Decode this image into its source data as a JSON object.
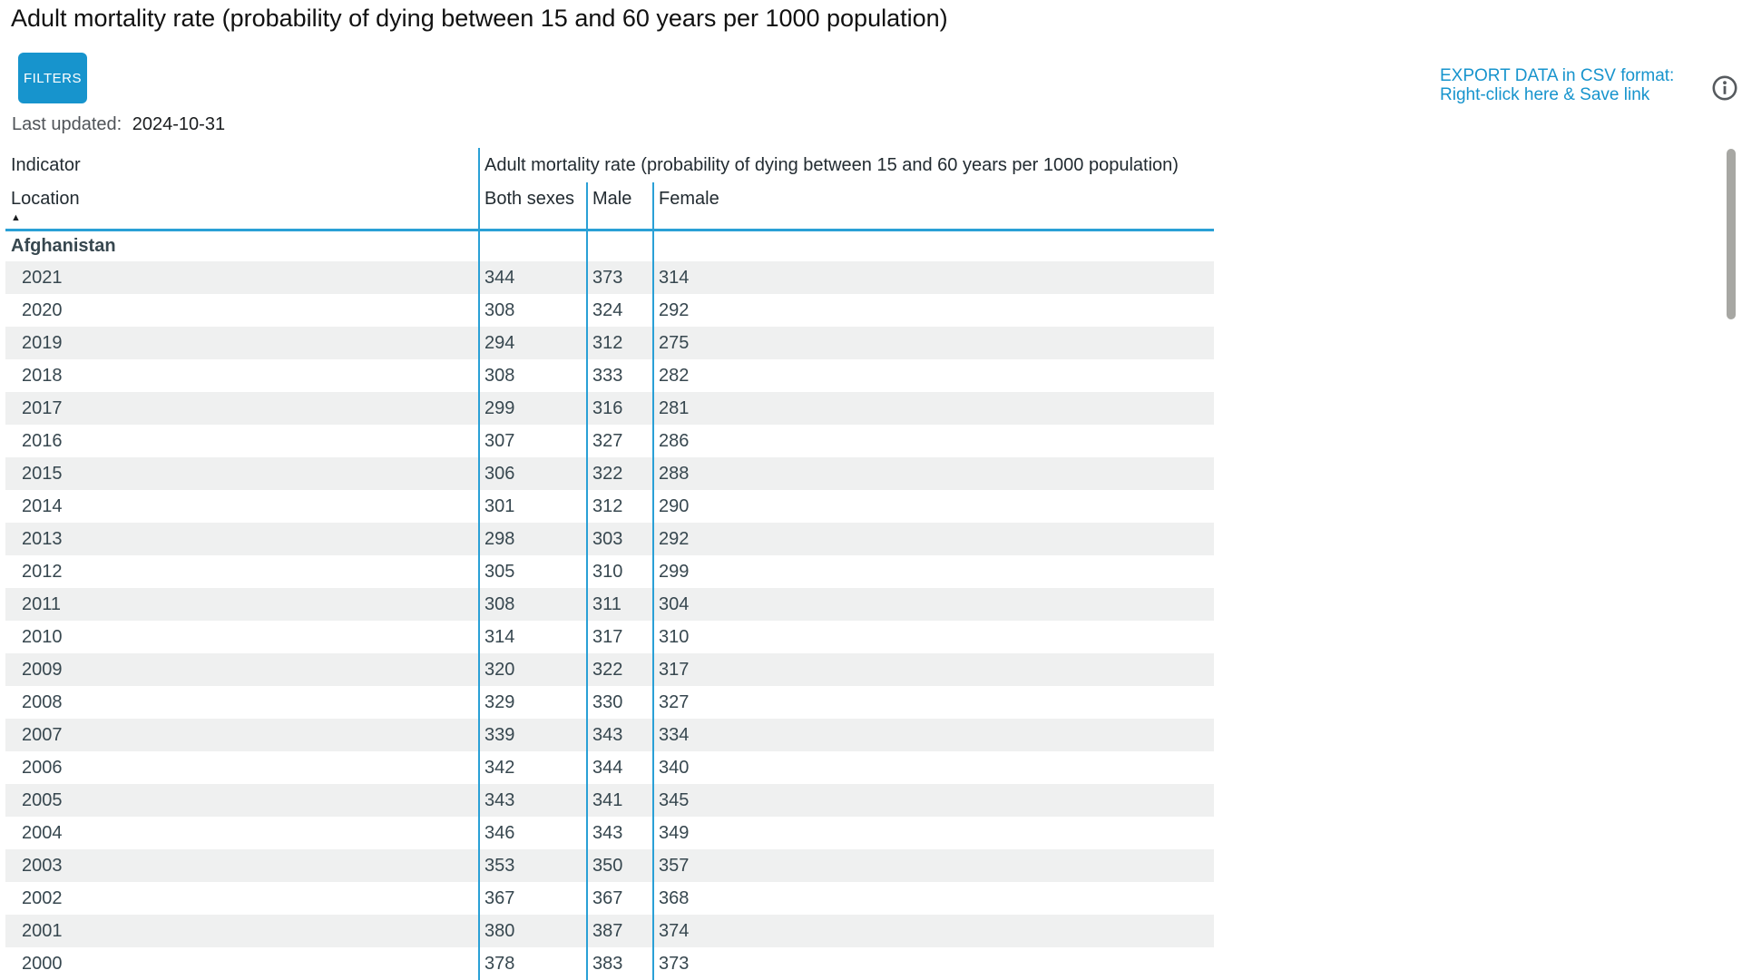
{
  "page": {
    "title": "Adult mortality rate (probability of dying between 15 and 60 years per 1000 population)"
  },
  "toolbar": {
    "filters_label": "FILTERS",
    "last_updated_label": "Last updated:",
    "last_updated_value": "2024-10-31",
    "export_line1": "EXPORT DATA in CSV format:",
    "export_line2": "Right-click here & Save link",
    "info_icon": "info-circle-icon"
  },
  "table": {
    "indicator_label": "Indicator",
    "indicator_value": "Adult mortality rate (probability of dying between 15 and 60 years per 1000 population)",
    "location_label": "Location",
    "sort_icon": "sort-ascending",
    "columns": [
      "Both sexes",
      "Male",
      "Female"
    ],
    "group_label": "Afghanistan",
    "rows": [
      {
        "year": "2021",
        "both_sexes": "344",
        "male": "373",
        "female": "314"
      },
      {
        "year": "2020",
        "both_sexes": "308",
        "male": "324",
        "female": "292"
      },
      {
        "year": "2019",
        "both_sexes": "294",
        "male": "312",
        "female": "275"
      },
      {
        "year": "2018",
        "both_sexes": "308",
        "male": "333",
        "female": "282"
      },
      {
        "year": "2017",
        "both_sexes": "299",
        "male": "316",
        "female": "281"
      },
      {
        "year": "2016",
        "both_sexes": "307",
        "male": "327",
        "female": "286"
      },
      {
        "year": "2015",
        "both_sexes": "306",
        "male": "322",
        "female": "288"
      },
      {
        "year": "2014",
        "both_sexes": "301",
        "male": "312",
        "female": "290"
      },
      {
        "year": "2013",
        "both_sexes": "298",
        "male": "303",
        "female": "292"
      },
      {
        "year": "2012",
        "both_sexes": "305",
        "male": "310",
        "female": "299"
      },
      {
        "year": "2011",
        "both_sexes": "308",
        "male": "311",
        "female": "304"
      },
      {
        "year": "2010",
        "both_sexes": "314",
        "male": "317",
        "female": "310"
      },
      {
        "year": "2009",
        "both_sexes": "320",
        "male": "322",
        "female": "317"
      },
      {
        "year": "2008",
        "both_sexes": "329",
        "male": "330",
        "female": "327"
      },
      {
        "year": "2007",
        "both_sexes": "339",
        "male": "343",
        "female": "334"
      },
      {
        "year": "2006",
        "both_sexes": "342",
        "male": "344",
        "female": "340"
      },
      {
        "year": "2005",
        "both_sexes": "343",
        "male": "341",
        "female": "345"
      },
      {
        "year": "2004",
        "both_sexes": "346",
        "male": "343",
        "female": "349"
      },
      {
        "year": "2003",
        "both_sexes": "353",
        "male": "350",
        "female": "357"
      },
      {
        "year": "2002",
        "both_sexes": "367",
        "male": "367",
        "female": "368"
      },
      {
        "year": "2001",
        "both_sexes": "380",
        "male": "387",
        "female": "374"
      },
      {
        "year": "2000",
        "both_sexes": "378",
        "male": "383",
        "female": "373"
      }
    ]
  },
  "colors": {
    "accent_blue": "#1794cd",
    "table_line_blue": "#2aa0d6",
    "row_stripe": "#eff0f0",
    "data_text": "#37474f",
    "header_text": "#222b31",
    "muted_text": "#4f5358",
    "info_icon_gray": "#565a5e",
    "scrollbar_thumb": "#a7a7a3"
  }
}
